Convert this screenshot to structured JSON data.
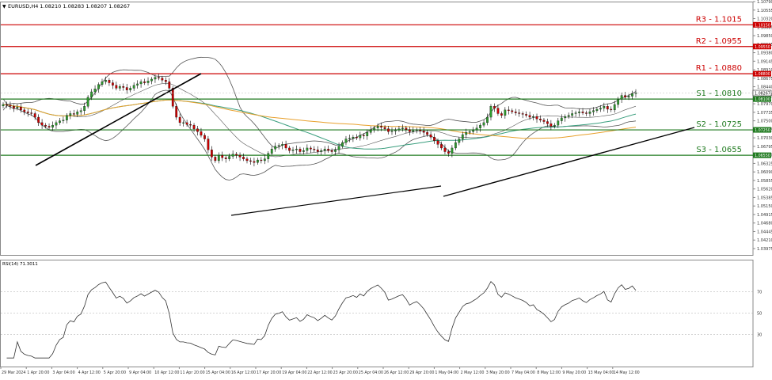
{
  "header": {
    "symbol_line": "EURUSD,H4  1.08210 1.08283 1.08207 1.08267",
    "menu_glyph": "▼"
  },
  "rsi_header": "RSI(14) 71.3011",
  "colors": {
    "resistance": "#cc0000",
    "support": "#1f7a1f",
    "candle_up": "#2e9b2e",
    "candle_down": "#cc0000",
    "ma_fast": "#3a9e7e",
    "ma_slow": "#e8a02c",
    "bands": "#555555",
    "trendline": "#000000",
    "rsi_line": "#333333"
  },
  "chart_data": [
    {
      "type": "candlestick",
      "symbol": "EURUSD",
      "timeframe": "H4",
      "ylim": [
        1.038,
        1.1079
      ],
      "y_ticks": [
        "1.10790",
        "1.10555",
        "1.10320",
        "1.10085",
        "1.09850",
        "1.09615",
        "1.09380",
        "1.09145",
        "1.08910",
        "1.08675",
        "1.08440",
        "1.08205",
        "1.07970",
        "1.07735",
        "1.07500",
        "1.07265",
        "1.07030",
        "1.06795",
        "1.06560",
        "1.06325",
        "1.06090",
        "1.05855",
        "1.05620",
        "1.05385",
        "1.05150",
        "1.04915",
        "1.04680",
        "1.04445",
        "1.04210",
        "1.03975"
      ],
      "x_ticks": [
        "29 Mar 2024",
        "1 Apr 20:00",
        "3 Apr 04:00",
        "4 Apr 12:00",
        "5 Apr 20:00",
        "9 Apr 04:00",
        "10 Apr 12:00",
        "11 Apr 20:00",
        "15 Apr 04:00",
        "16 Apr 12:00",
        "17 Apr 20:00",
        "19 Apr 04:00",
        "22 Apr 12:00",
        "23 Apr 20:00",
        "25 Apr 04:00",
        "26 Apr 12:00",
        "29 Apr 20:00",
        "1 May 04:00",
        "2 May 12:00",
        "3 May 20:00",
        "7 May 04:00",
        "8 May 12:00",
        "9 May 20:00",
        "13 May 04:00",
        "14 May 12:00"
      ],
      "levels": [
        {
          "name": "R3",
          "label": "R3 - 1.1015",
          "value": 1.1015,
          "tag": "1.10150",
          "kind": "resistance"
        },
        {
          "name": "R2",
          "label": "R2 - 1.0955",
          "value": 1.0955,
          "tag": "1.09550",
          "kind": "resistance"
        },
        {
          "name": "R1",
          "label": "R1 - 1.0880",
          "value": 1.088,
          "tag": "1.08800",
          "kind": "resistance"
        },
        {
          "name": "S1",
          "label": "S1 - 1.0810",
          "value": 1.081,
          "tag": "1.08100",
          "kind": "support"
        },
        {
          "name": "S2",
          "label": "S2 - 1.0725",
          "value": 1.0725,
          "tag": "1.07250",
          "kind": "support"
        },
        {
          "name": "S3",
          "label": "S3 - 1.0655",
          "value": 1.0655,
          "tag": "1.06550",
          "kind": "support"
        }
      ],
      "current_price": {
        "value": 1.08267,
        "tag": "1.08267"
      },
      "close_series": [
        1.0795,
        1.0793,
        1.079,
        1.0785,
        1.0788,
        1.078,
        1.0775,
        1.0772,
        1.077,
        1.076,
        1.0745,
        1.0738,
        1.0735,
        1.0732,
        1.0738,
        1.0745,
        1.075,
        1.0752,
        1.0765,
        1.077,
        1.0768,
        1.0775,
        1.0778,
        1.079,
        1.0815,
        1.083,
        1.0838,
        1.085,
        1.0858,
        1.0862,
        1.0855,
        1.0848,
        1.084,
        1.0845,
        1.0842,
        1.0835,
        1.084,
        1.0848,
        1.0852,
        1.0858,
        1.0855,
        1.086,
        1.0865,
        1.087,
        1.0868,
        1.0862,
        1.0858,
        1.084,
        1.079,
        1.076,
        1.0745,
        1.0745,
        1.074,
        1.0738,
        1.0728,
        1.072,
        1.071,
        1.07,
        1.067,
        1.065,
        1.064,
        1.0655,
        1.0648,
        1.0645,
        1.0652,
        1.0658,
        1.0655,
        1.065,
        1.0645,
        1.064,
        1.0638,
        1.0635,
        1.0642,
        1.064,
        1.0645,
        1.066,
        1.0672,
        1.068,
        1.0682,
        1.0685,
        1.0675,
        1.0668,
        1.067,
        1.0672,
        1.0665,
        1.0668,
        1.0675,
        1.0672,
        1.067,
        1.0665,
        1.0668,
        1.0672,
        1.0668,
        1.0665,
        1.067,
        1.068,
        1.069,
        1.07,
        1.0702,
        1.0705,
        1.0703,
        1.071,
        1.0708,
        1.0718,
        1.0725,
        1.073,
        1.0735,
        1.0732,
        1.0728,
        1.072,
        1.0722,
        1.0725,
        1.0728,
        1.073,
        1.0726,
        1.072,
        1.0723,
        1.0725,
        1.0722,
        1.0718,
        1.0712,
        1.0705,
        1.0695,
        1.0685,
        1.0675,
        1.0665,
        1.066,
        1.0675,
        1.069,
        1.07,
        1.0712,
        1.0718,
        1.072,
        1.0725,
        1.073,
        1.0738,
        1.0745,
        1.076,
        1.079,
        1.0785,
        1.077,
        1.0765,
        1.078,
        1.0778,
        1.0775,
        1.0772,
        1.077,
        1.0768,
        1.0765,
        1.076,
        1.0762,
        1.0755,
        1.0752,
        1.0748,
        1.0742,
        1.0735,
        1.0738,
        1.075,
        1.0758,
        1.0762,
        1.0765,
        1.077,
        1.0772,
        1.0775,
        1.0772,
        1.077,
        1.0775,
        1.0778,
        1.0782,
        1.0785,
        1.079,
        1.0782,
        1.078,
        1.0795,
        1.081,
        1.082,
        1.0815,
        1.0818,
        1.0825,
        1.0827
      ],
      "rsi": {
        "period": 14,
        "value": 71.3011,
        "levels": [
          70,
          50,
          30
        ],
        "ylim": [
          0,
          100
        ]
      }
    }
  ]
}
